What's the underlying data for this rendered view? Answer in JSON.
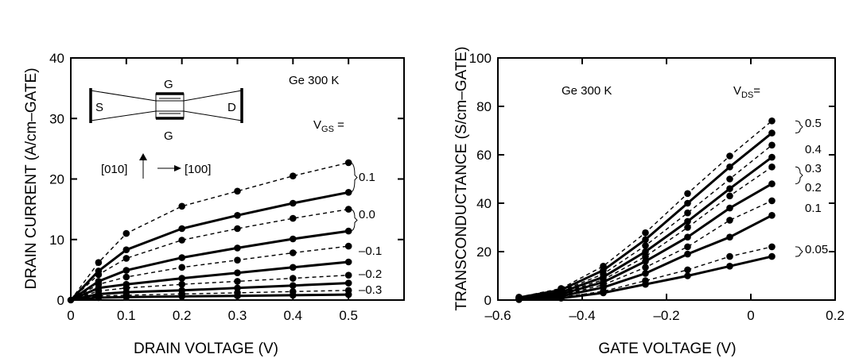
{
  "chart_data": [
    {
      "type": "line",
      "xlabel": "DRAIN VOLTAGE  (V)",
      "ylabel": "DRAIN CURRENT  (A/cm–GATE)",
      "xlim": [
        0,
        0.6
      ],
      "ylim": [
        0,
        40
      ],
      "xticks": [
        "0",
        "0.1",
        "0.2",
        "0.3",
        "0.4",
        "0.5"
      ],
      "yticks": [
        "0",
        "10",
        "20",
        "30",
        "40"
      ],
      "grid": false,
      "annotation": "Ge  300 K",
      "param_label_main": "V",
      "param_label_sub": "GS",
      "param_label_suffix": " =",
      "group_labels": [
        "0.1",
        "0.0",
        "–0.1",
        "–0.2",
        "–0.3"
      ],
      "inset": {
        "source": "S",
        "drain": "D",
        "gate_top": "G",
        "gate_bottom": "G",
        "direction_vertical": "[010]",
        "direction_horizontal": "[100]"
      },
      "x": [
        0,
        0.05,
        0.1,
        0.2,
        0.3,
        0.4,
        0.5
      ],
      "series": [
        {
          "style": "dashed",
          "values": [
            0,
            6.2,
            11.0,
            15.5,
            18.0,
            20.5,
            22.7
          ]
        },
        {
          "style": "solid",
          "values": [
            0,
            4.8,
            8.3,
            11.8,
            14.0,
            16.0,
            17.8
          ]
        },
        {
          "style": "dashed",
          "values": [
            0,
            4.2,
            6.9,
            9.9,
            11.8,
            13.5,
            15.0
          ]
        },
        {
          "style": "solid",
          "values": [
            0,
            3.1,
            4.9,
            7.0,
            8.6,
            10.1,
            11.4
          ]
        },
        {
          "style": "dashed",
          "values": [
            0,
            2.6,
            3.8,
            5.4,
            6.6,
            7.8,
            8.9
          ]
        },
        {
          "style": "solid",
          "values": [
            0,
            2.0,
            2.6,
            3.6,
            4.5,
            5.4,
            6.3
          ]
        },
        {
          "style": "dashed",
          "values": [
            0,
            1.5,
            2.0,
            2.6,
            3.1,
            3.6,
            4.1
          ]
        },
        {
          "style": "solid",
          "values": [
            0,
            1.0,
            1.3,
            1.6,
            2.0,
            2.4,
            2.8
          ]
        },
        {
          "style": "dashed",
          "values": [
            0,
            0.7,
            0.8,
            1.0,
            1.2,
            1.4,
            1.6
          ]
        },
        {
          "style": "solid",
          "values": [
            0,
            0.4,
            0.5,
            0.6,
            0.7,
            0.8,
            0.9
          ]
        }
      ]
    },
    {
      "type": "line",
      "xlabel": "GATE VOLTAGE  (V)",
      "ylabel": "TRANSCONDUCTANCE  (S/cm–GATE)",
      "xlim": [
        -0.6,
        0.2
      ],
      "ylim": [
        0,
        100
      ],
      "xticks": [
        "–0.6",
        "–0.4",
        "–0.2",
        "0",
        "0.2"
      ],
      "yticks": [
        "0",
        "20",
        "40",
        "60",
        "80",
        "100"
      ],
      "grid": false,
      "annotation": "Ge  300 K",
      "param_label_main": "V",
      "param_label_sub": "DS",
      "param_label_suffix": "=",
      "group_labels": [
        "0.5",
        "0.4",
        "0.3",
        "0.2",
        "0.1",
        "0.05"
      ],
      "x": [
        -0.55,
        -0.45,
        -0.35,
        -0.25,
        -0.15,
        -0.05,
        0.05
      ],
      "series": [
        {
          "style": "dashed",
          "values": [
            1.2,
            4.8,
            14.0,
            27.8,
            44.0,
            59.5,
            74.0
          ]
        },
        {
          "style": "solid",
          "values": [
            1.0,
            4.2,
            12.3,
            25.0,
            40.0,
            55.0,
            69.0
          ]
        },
        {
          "style": "dashed",
          "values": [
            0.9,
            3.7,
            10.8,
            22.5,
            36.0,
            50.0,
            64.0
          ]
        },
        {
          "style": "solid",
          "values": [
            0.8,
            3.2,
            9.5,
            20.0,
            32.5,
            46.0,
            59.0
          ]
        },
        {
          "style": "dashed",
          "values": [
            0.7,
            2.8,
            8.4,
            18.0,
            30.0,
            43.0,
            55.0
          ]
        },
        {
          "style": "solid",
          "values": [
            0.6,
            2.4,
            7.4,
            16.0,
            26.0,
            38.0,
            48.0
          ]
        },
        {
          "style": "dashed",
          "values": [
            0.5,
            2.0,
            6.3,
            13.5,
            22.0,
            33.0,
            41.0
          ]
        },
        {
          "style": "solid",
          "values": [
            0.4,
            1.6,
            5.2,
            11.0,
            19.0,
            26.0,
            35.0
          ]
        },
        {
          "style": "dashed",
          "values": [
            0.3,
            1.1,
            3.6,
            8.0,
            12.5,
            18.0,
            22.0
          ]
        },
        {
          "style": "solid",
          "values": [
            0.2,
            0.8,
            3.0,
            6.5,
            10.0,
            14.0,
            18.0
          ]
        }
      ]
    }
  ]
}
